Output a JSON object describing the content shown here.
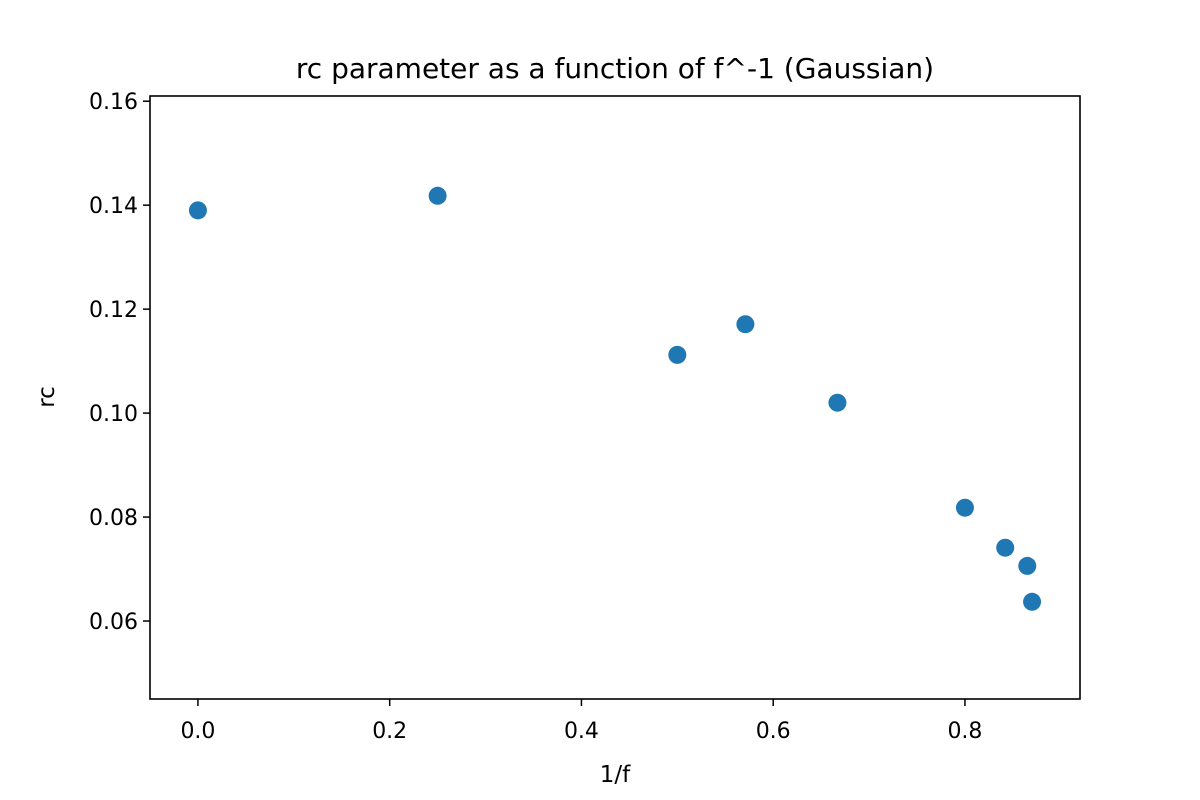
{
  "chart_data": {
    "type": "scatter",
    "title": "rc parameter as a function of f^-1 (Gaussian)",
    "xlabel": "1/f",
    "ylabel": "rc",
    "xlim": [
      -0.05,
      0.92
    ],
    "ylim": [
      0.045,
      0.161
    ],
    "xticks": [
      0.0,
      0.2,
      0.4,
      0.6,
      0.8
    ],
    "xtick_labels": [
      "0.0",
      "0.2",
      "0.4",
      "0.6",
      "0.8"
    ],
    "yticks": [
      0.06,
      0.08,
      0.1,
      0.12,
      0.14,
      0.16
    ],
    "ytick_labels": [
      "0.06",
      "0.08",
      "0.10",
      "0.12",
      "0.14",
      "0.16"
    ],
    "grid": false,
    "marker_color": "#1f77b4",
    "points": [
      {
        "x": 0.0,
        "y": 0.139
      },
      {
        "x": 0.25,
        "y": 0.1418
      },
      {
        "x": 0.5,
        "y": 0.1112
      },
      {
        "x": 0.571,
        "y": 0.1171
      },
      {
        "x": 0.667,
        "y": 0.102
      },
      {
        "x": 0.8,
        "y": 0.0818
      },
      {
        "x": 0.842,
        "y": 0.0741
      },
      {
        "x": 0.865,
        "y": 0.0706
      },
      {
        "x": 0.87,
        "y": 0.0637
      }
    ]
  }
}
